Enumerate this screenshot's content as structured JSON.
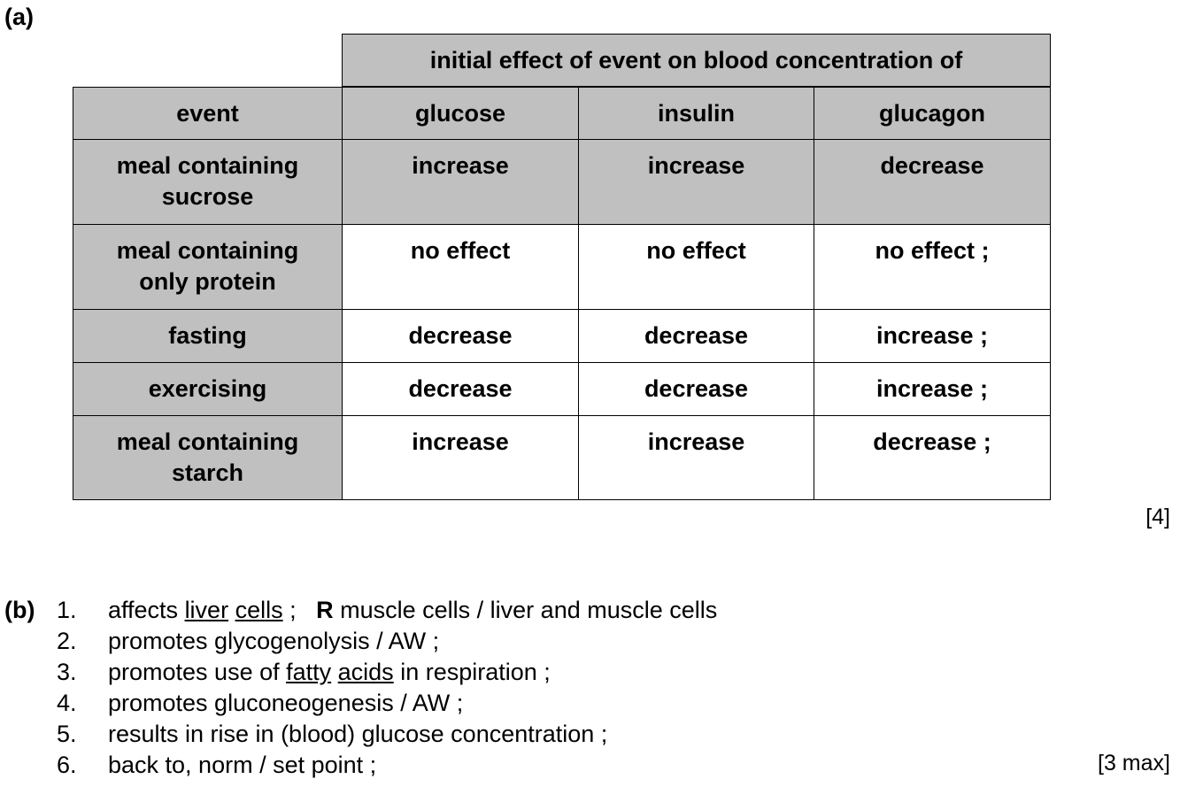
{
  "part_a": {
    "label": "(a)",
    "table": {
      "group_header": "initial effect of event on blood concentration of",
      "columns": [
        "event",
        "glucose",
        "insulin",
        "glucagon"
      ],
      "rows": [
        {
          "event": [
            "meal containing",
            "sucrose"
          ],
          "glucose": "increase",
          "insulin": "increase",
          "glucagon": "decrease",
          "given": true
        },
        {
          "event": [
            "meal containing",
            "only protein"
          ],
          "glucose": "no effect",
          "insulin": "no effect",
          "glucagon": "no effect ;",
          "given": false
        },
        {
          "event": [
            "fasting"
          ],
          "glucose": "decrease",
          "insulin": "decrease",
          "glucagon": "increase ;",
          "given": false
        },
        {
          "event": [
            "exercising"
          ],
          "glucose": "decrease",
          "insulin": "decrease",
          "glucagon": "increase ;",
          "given": false
        },
        {
          "event": [
            "meal containing",
            "starch"
          ],
          "glucose": "increase",
          "insulin": "increase",
          "glucagon": "decrease ;",
          "given": false
        }
      ]
    },
    "marks": "[4]"
  },
  "part_b": {
    "label": "(b)",
    "answers": [
      {
        "num": "1.",
        "pre": "affects ",
        "u1": "liver",
        "sp": " ",
        "u2": "cells",
        "post": " ;   ",
        "bold": "R",
        "post2": " muscle cells / liver and muscle cells"
      },
      {
        "num": "2.",
        "text": "promotes glycogenolysis / AW ;"
      },
      {
        "num": "3.",
        "pre": "promotes use of ",
        "u1": "fatty",
        "sp": " ",
        "u2": "acids",
        "post": " in respiration ;"
      },
      {
        "num": "4.",
        "text": "promotes gluconeogenesis / AW ;"
      },
      {
        "num": "5.",
        "text": "results in rise in (blood) glucose concentration ;"
      },
      {
        "num": "6.",
        "text": "back to, norm / set point ;"
      }
    ],
    "marks": "[3 max]"
  },
  "colors": {
    "header_fill": "#c0c0c0",
    "border": "#000000"
  }
}
